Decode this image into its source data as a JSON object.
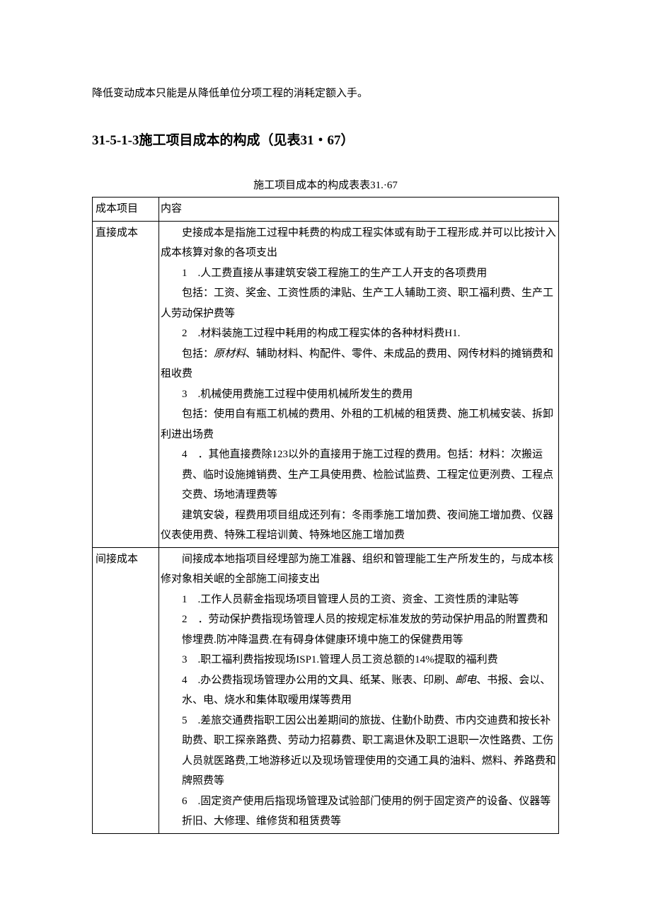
{
  "intro": "降低变动成本只能是从降低单位分项工程的消耗定额入手。",
  "heading": "31-5-1-3施工项目成本的构成（见表31・67）",
  "table_caption": "施工项目成本的构成表表31.·67",
  "table": {
    "header": {
      "col1": "成本项目",
      "col2": "内容"
    },
    "row1": {
      "label": "直接成本",
      "p1": "史接成本是指施工过程中耗费的构成工程实体或有助于工程形成.并可以比按计入成本核算对象的各项支出",
      "n1_num": "1",
      "n1": ".人工费直接从事建筑安袋工程施工的生产工人开支的各项费用",
      "p2": "包括：工资、奖金、工资性质的津贴、生产工人辅助工资、职工福利费、生产工人劳动保护费等",
      "n2_num": "2",
      "n2": ".材料装施工过程中耗用的构成工程实体的各种材料费H1.",
      "p3a": "包括：",
      "p3_italic": "原材料",
      "p3b": "、辅助材料、构配件、零件、未成品的费用、网传材料的摊销费和租收费",
      "n3_num": "3",
      "n3": ".机械使用费施工过程中使用机械所发生的费用",
      "p4": "包括：使用自有瓶工机械的费用、外租的工机械的租赁费、施工机械安装、拆卸利进出场费",
      "n4_num": "4",
      "n4": "．其他直接费除123以外的直接用于施工过程的费用。包括：材料：次搬运费、临时设施摊销费、生产工具使用费、检脸试监费、工程定位更洌费、工程点交费、场地清理费等",
      "p5": "建筑安袋，程费用项目组成还列有：冬雨季施工增加费、夜间施工增加费、仪器仪表使用费、特殊工程培训黄、特殊地区施工增加费"
    },
    "row2": {
      "label": "间接成本",
      "p1": "间接成本地指项目经埋部为施工准器、组织和管理能工生产所发生的，与成本核修对象相关岷的全部施工间接支出",
      "n1_num": "1",
      "n1": ".工作人员薪金指现场项目管理人员的工资、资金、工资性质的津贴等",
      "n2_num": "2",
      "n2": "．劳动保护费指现场管理人员的按规定标准发放的劳动保护用品的附置费和惨埋费.防冲降温费.在有碍身体健康环境中施工的保健费用等",
      "n3_num": "3",
      "n3": ".职工福利费指按现场ISP1.管理人员工资总额的14%提取的福利费",
      "n4_num": "4",
      "n4a": ".办公费指现场管理办公用的文具、纸某、账表、印刷、",
      "n4_italic": "邮电",
      "n4b": "、书报、会以、水、电、烧水和集体取暧用煤等费用",
      "n5_num": "5",
      "n5": ".差旅交通费指职工因公出差期间的旅拢、住勤仆助费、市内交迪费和按长补助费、职工探亲路费、劳动力招募费、职工离退休及职工退职一次性路费、工伤人员就医路费,工地游移近以及现场管理使用的交通工具的油料、燃料、养路费和牌照费等",
      "n6_num": "6",
      "n6": ".固定资产使用后指现场管理及试验部门使用的例于固定资产的设备、仪器等折旧、大修理、维修货和租赁费等"
    }
  },
  "colors": {
    "text": "#000000",
    "bg": "#ffffff",
    "border": "#000000"
  }
}
